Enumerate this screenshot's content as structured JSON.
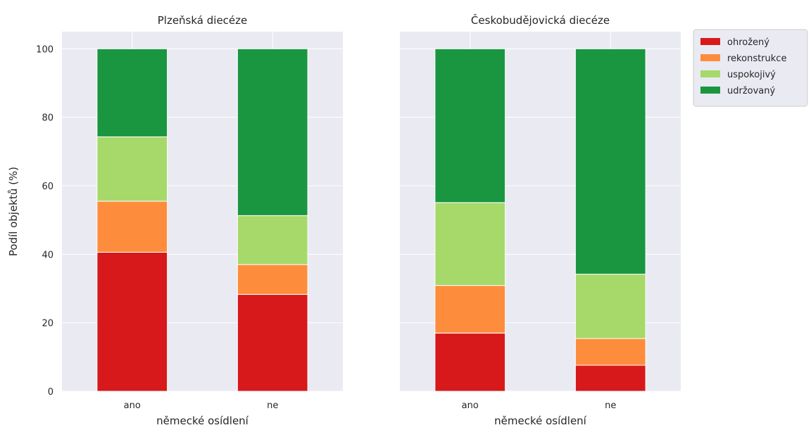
{
  "chart_data": [
    {
      "type": "bar",
      "stacked": true,
      "title": "Plzeňská diecéze",
      "xlabel": "německé osídlení",
      "ylabel": "Podíl objektů (%)",
      "categories": [
        "ano",
        "ne"
      ],
      "ylim": [
        0,
        105
      ],
      "yticks": [
        0,
        20,
        40,
        60,
        80,
        100
      ],
      "grid": true,
      "series": [
        {
          "name": "ohrožený",
          "color": "#d7191c",
          "values": [
            40.6,
            28.3
          ]
        },
        {
          "name": "rekonstrukce",
          "color": "#fd8d3c",
          "values": [
            14.9,
            8.7
          ]
        },
        {
          "name": "uspokojivý",
          "color": "#a6d96a",
          "values": [
            18.8,
            14.3
          ]
        },
        {
          "name": "udržovaný",
          "color": "#1a9641",
          "values": [
            25.7,
            48.7
          ]
        }
      ]
    },
    {
      "type": "bar",
      "stacked": true,
      "title": "Českobudějovická diecéze",
      "xlabel": "německé osídlení",
      "ylabel": "",
      "categories": [
        "ano",
        "ne"
      ],
      "ylim": [
        0,
        105
      ],
      "grid": true,
      "series": [
        {
          "name": "ohrožený",
          "color": "#d7191c",
          "values": [
            17.0,
            7.6
          ]
        },
        {
          "name": "rekonstrukce",
          "color": "#fd8d3c",
          "values": [
            13.9,
            7.8
          ]
        },
        {
          "name": "uspokojivý",
          "color": "#a6d96a",
          "values": [
            24.2,
            18.8
          ]
        },
        {
          "name": "udržovaný",
          "color": "#1a9641",
          "values": [
            44.9,
            65.8
          ]
        }
      ]
    }
  ],
  "legend": {
    "placement": "outside-top-right",
    "entries": [
      {
        "label": "ohrožený",
        "color": "#d7191c"
      },
      {
        "label": "rekonstrukce",
        "color": "#fd8d3c"
      },
      {
        "label": "uspokojivý",
        "color": "#a6d96a"
      },
      {
        "label": "udržovaný",
        "color": "#1a9641"
      }
    ]
  },
  "style": {
    "axes_background": "#eaeaf2",
    "grid_color": "#ffffff",
    "text_color": "#262626"
  }
}
